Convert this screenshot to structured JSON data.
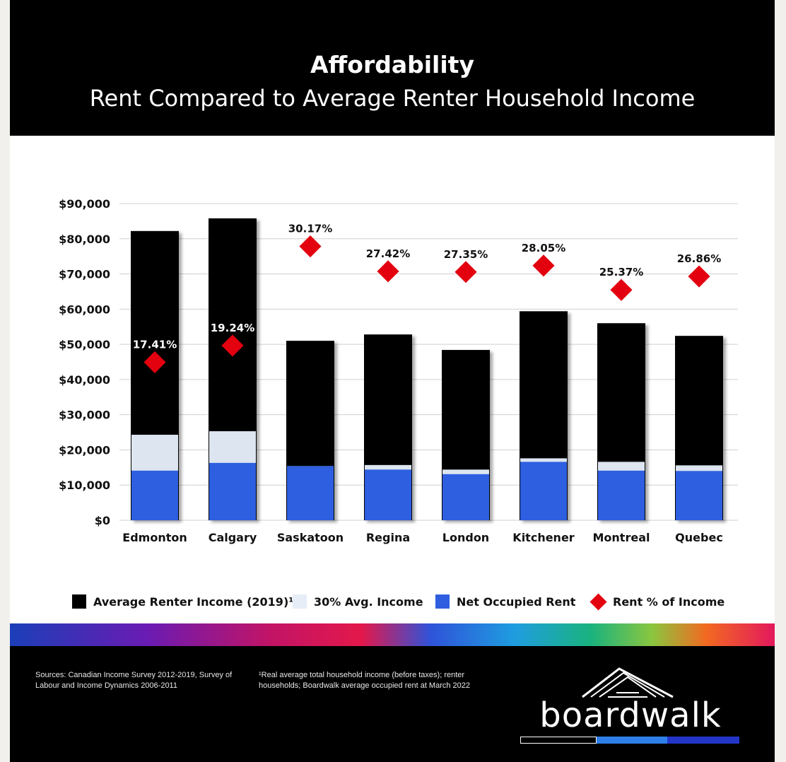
{
  "header": {
    "title": "Affordability",
    "subtitle": "Rent Compared to Average Renter Household Income"
  },
  "colors": {
    "income": "#000000",
    "thirty_pct": "#dde5f0",
    "rent": "#2f5fe0",
    "rent_pct": "#e3000f",
    "grid": "#d0d0d0"
  },
  "chart_data": {
    "type": "bar",
    "title": "Affordability",
    "subtitle": "Rent Compared to Average Renter Household Income",
    "categories": [
      "Edmonton",
      "Calgary",
      "Saskatoon",
      "Regina",
      "London",
      "Kitchener",
      "Montreal",
      "Quebec"
    ],
    "yticks": [
      "$0",
      "$10,000",
      "$20,000",
      "$30,000",
      "$40,000",
      "$50,000",
      "$60,000",
      "$70,000",
      "$80,000",
      "$90,000"
    ],
    "ylim": [
      0,
      90000
    ],
    "grid": true,
    "legend_position": "bottom",
    "series": [
      {
        "name": "Average Renter Income (2019)¹",
        "values": [
          82200,
          85800,
          51000,
          52800,
          48400,
          59400,
          56000,
          52400
        ]
      },
      {
        "name": "30% Avg. Income",
        "values": [
          24300,
          25300,
          15400,
          15700,
          14400,
          17600,
          16600,
          15600
        ]
      },
      {
        "name": "Net Occupied Rent",
        "values": [
          14100,
          16300,
          15400,
          14400,
          13100,
          16600,
          14100,
          14000
        ]
      },
      {
        "name": "Rent % of Income",
        "values": [
          17.41,
          19.24,
          30.17,
          27.42,
          27.35,
          28.05,
          25.37,
          26.86
        ],
        "labels": [
          "17.41%",
          "19.24%",
          "30.17%",
          "27.42%",
          "27.35%",
          "28.05%",
          "25.37%",
          "26.86%"
        ]
      }
    ]
  },
  "legend": [
    {
      "label": "Average Renter Income (2019)¹",
      "color": "#000000"
    },
    {
      "label": "30% Avg. Income",
      "color": "#e6edf7"
    },
    {
      "label": "Net Occupied Rent",
      "color": "#2f5fe0"
    },
    {
      "label": "Rent % of Income",
      "color": "#e3000f"
    }
  ],
  "footer": {
    "sources": "Sources: Canadian Income Survey 2012-2019, Survey of Labour and Income Dynamics 2006-2011",
    "notes": "¹Real average total household income (before taxes); renter households; Boardwalk average occupied rent at March 2022",
    "brand": "boardwalk"
  }
}
